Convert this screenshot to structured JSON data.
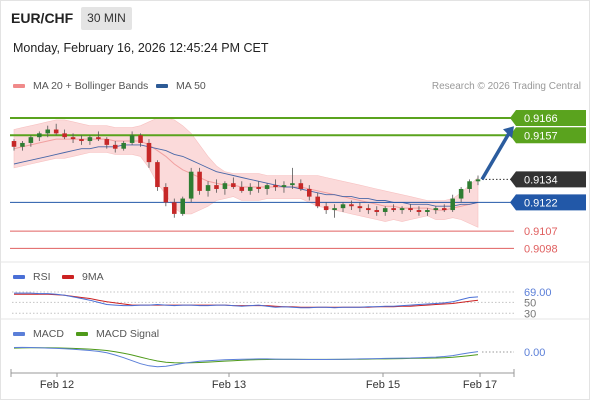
{
  "header": {
    "pair": "EUR/CHF",
    "timeframe": "30 MIN",
    "datetime": "Monday, February 16, 2026 12:45:24 PM CET"
  },
  "legend": {
    "items": [
      {
        "label": "MA 20 + Bollinger Bands",
        "color": "#f08a8a"
      },
      {
        "label": "MA 50",
        "color": "#2d5b96"
      }
    ],
    "credit": "Research © 2026 Trading Central"
  },
  "colors": {
    "bull": "#2e7d32",
    "bear": "#c62828",
    "resistance": "#5aa31e",
    "support": "#e06060",
    "pivot": "#2258a8",
    "current": "#333333",
    "bb_fill": "#fbd4d4",
    "ma20": "#f1a0a0",
    "ma50": "#4a68a8",
    "rsi": "#4a6fd6",
    "rsi_ma": "#cc2222",
    "macd": "#5b7fd8",
    "macd_signal": "#4f9a1a",
    "arrow": "#2b5c9e"
  },
  "chart_data": [
    {
      "type": "candlestick",
      "title": "EUR/CHF",
      "ylim": [
        0.9093,
        0.9178
      ],
      "x_ticks": [
        "Feb 12",
        "Feb 13",
        "Feb 15",
        "Feb 17"
      ],
      "candles_ohlc": [
        [
          0.9154,
          0.9155,
          0.9149,
          0.9151
        ],
        [
          0.9151,
          0.9154,
          0.9149,
          0.9153
        ],
        [
          0.9153,
          0.9157,
          0.9151,
          0.9156
        ],
        [
          0.9156,
          0.9159,
          0.9154,
          0.9158
        ],
        [
          0.9158,
          0.9162,
          0.9156,
          0.916
        ],
        [
          0.916,
          0.9163,
          0.9157,
          0.9158
        ],
        [
          0.9158,
          0.916,
          0.9155,
          0.9156
        ],
        [
          0.9156,
          0.9158,
          0.9153,
          0.9155
        ],
        [
          0.9155,
          0.9157,
          0.9152,
          0.9154
        ],
        [
          0.9154,
          0.9157,
          0.9152,
          0.9156
        ],
        [
          0.9156,
          0.9159,
          0.9154,
          0.9155
        ],
        [
          0.9155,
          0.9156,
          0.915,
          0.9152
        ],
        [
          0.9152,
          0.9154,
          0.9148,
          0.915
        ],
        [
          0.915,
          0.9154,
          0.9149,
          0.9153
        ],
        [
          0.9153,
          0.9159,
          0.9152,
          0.9157
        ],
        [
          0.9157,
          0.9158,
          0.9151,
          0.9153
        ],
        [
          0.9153,
          0.9155,
          0.914,
          0.9143
        ],
        [
          0.9143,
          0.9144,
          0.9128,
          0.913
        ],
        [
          0.913,
          0.9132,
          0.912,
          0.9122
        ],
        [
          0.9122,
          0.9124,
          0.9114,
          0.9116
        ],
        [
          0.9116,
          0.9125,
          0.9115,
          0.9124
        ],
        [
          0.9124,
          0.914,
          0.9122,
          0.9138
        ],
        [
          0.9138,
          0.914,
          0.9126,
          0.9128
        ],
        [
          0.9128,
          0.9133,
          0.9125,
          0.9131
        ],
        [
          0.9131,
          0.9134,
          0.9127,
          0.9129
        ],
        [
          0.9129,
          0.9133,
          0.9126,
          0.9132
        ],
        [
          0.9132,
          0.9135,
          0.9129,
          0.913
        ],
        [
          0.913,
          0.9133,
          0.9127,
          0.9128
        ],
        [
          0.9128,
          0.9132,
          0.9126,
          0.913
        ],
        [
          0.913,
          0.9133,
          0.9127,
          0.9129
        ],
        [
          0.9129,
          0.9132,
          0.9126,
          0.9131
        ],
        [
          0.9131,
          0.9134,
          0.9128,
          0.913
        ],
        [
          0.913,
          0.9133,
          0.9127,
          0.9131
        ],
        [
          0.9131,
          0.914,
          0.9129,
          0.9132
        ],
        [
          0.9132,
          0.9134,
          0.9128,
          0.9129
        ],
        [
          0.9129,
          0.9131,
          0.9123,
          0.9125
        ],
        [
          0.9125,
          0.9127,
          0.9119,
          0.912
        ],
        [
          0.912,
          0.9122,
          0.9116,
          0.9118
        ],
        [
          0.9118,
          0.9121,
          0.9114,
          0.9119
        ],
        [
          0.9119,
          0.9122,
          0.9117,
          0.9121
        ],
        [
          0.9121,
          0.9123,
          0.9118,
          0.912
        ],
        [
          0.912,
          0.9122,
          0.9117,
          0.9119
        ],
        [
          0.9119,
          0.9121,
          0.9116,
          0.9118
        ],
        [
          0.9118,
          0.912,
          0.9115,
          0.9117
        ],
        [
          0.9117,
          0.912,
          0.9115,
          0.9119
        ],
        [
          0.9119,
          0.9121,
          0.9117,
          0.9118
        ],
        [
          0.9118,
          0.912,
          0.9116,
          0.9119
        ],
        [
          0.9119,
          0.9121,
          0.9117,
          0.9118
        ],
        [
          0.9118,
          0.912,
          0.9115,
          0.9117
        ],
        [
          0.9117,
          0.9119,
          0.9115,
          0.9118
        ],
        [
          0.9118,
          0.912,
          0.9116,
          0.9119
        ],
        [
          0.9119,
          0.9121,
          0.9117,
          0.9118
        ],
        [
          0.9118,
          0.9126,
          0.9117,
          0.9124
        ],
        [
          0.9124,
          0.913,
          0.9122,
          0.9129
        ],
        [
          0.9129,
          0.9134,
          0.9127,
          0.9133
        ],
        [
          0.9133,
          0.9136,
          0.9131,
          0.9134
        ]
      ],
      "ma20": [
        0.915,
        0.9151,
        0.9152,
        0.9153,
        0.9154,
        0.9155,
        0.9155,
        0.9155,
        0.9155,
        0.9155,
        0.9155,
        0.9155,
        0.9154,
        0.9154,
        0.9154,
        0.9154,
        0.9152,
        0.9149,
        0.9146,
        0.9142,
        0.9139,
        0.9137,
        0.9135,
        0.9133,
        0.9132,
        0.9131,
        0.9131,
        0.913,
        0.913,
        0.913,
        0.913,
        0.913,
        0.913,
        0.913,
        0.913,
        0.9129,
        0.9128,
        0.9127,
        0.9126,
        0.9125,
        0.9124,
        0.9123,
        0.9122,
        0.9121,
        0.912,
        0.912,
        0.9119,
        0.9119,
        0.9119,
        0.9119,
        0.9118,
        0.9118,
        0.9119,
        0.912,
        0.9121,
        0.9122
      ],
      "bb_upper": [
        0.916,
        0.9161,
        0.9162,
        0.9163,
        0.9164,
        0.9165,
        0.9165,
        0.9164,
        0.9163,
        0.9162,
        0.9162,
        0.9162,
        0.9161,
        0.9161,
        0.9161,
        0.9162,
        0.9164,
        0.9166,
        0.9166,
        0.9165,
        0.9162,
        0.9158,
        0.9152,
        0.9146,
        0.9141,
        0.9138,
        0.9137,
        0.9137,
        0.9137,
        0.9137,
        0.9136,
        0.9136,
        0.9136,
        0.9136,
        0.9136,
        0.9136,
        0.9136,
        0.9135,
        0.9134,
        0.9133,
        0.9132,
        0.9131,
        0.913,
        0.9129,
        0.9128,
        0.9127,
        0.9126,
        0.9125,
        0.9124,
        0.9123,
        0.9123,
        0.9123,
        0.9124,
        0.9127,
        0.9131,
        0.9135
      ],
      "bb_lower": [
        0.914,
        0.9141,
        0.9142,
        0.9143,
        0.9144,
        0.9145,
        0.9145,
        0.9146,
        0.9147,
        0.9148,
        0.9148,
        0.9148,
        0.9147,
        0.9147,
        0.9147,
        0.9146,
        0.914,
        0.9132,
        0.9126,
        0.9119,
        0.9116,
        0.9116,
        0.9118,
        0.912,
        0.9123,
        0.9124,
        0.9125,
        0.9123,
        0.9123,
        0.9123,
        0.9124,
        0.9124,
        0.9124,
        0.9124,
        0.9124,
        0.9122,
        0.912,
        0.9119,
        0.9118,
        0.9117,
        0.9116,
        0.9115,
        0.9114,
        0.9113,
        0.9112,
        0.9113,
        0.9112,
        0.9113,
        0.9114,
        0.9115,
        0.9113,
        0.9113,
        0.9114,
        0.9113,
        0.9111,
        0.9109
      ],
      "ma50": [
        0.9142,
        0.9143,
        0.9144,
        0.9145,
        0.9146,
        0.9147,
        0.9148,
        0.9149,
        0.915,
        0.915,
        0.9151,
        0.9151,
        0.9151,
        0.9152,
        0.9152,
        0.9152,
        0.9151,
        0.915,
        0.9149,
        0.9147,
        0.9146,
        0.9144,
        0.9142,
        0.914,
        0.9138,
        0.9137,
        0.9136,
        0.9135,
        0.9134,
        0.9133,
        0.9132,
        0.9131,
        0.913,
        0.913,
        0.9129,
        0.9128,
        0.9127,
        0.9126,
        0.9126,
        0.9125,
        0.9125,
        0.9124,
        0.9124,
        0.9123,
        0.9123,
        0.9122,
        0.9122,
        0.9121,
        0.9121,
        0.9121,
        0.912,
        0.912,
        0.912,
        0.9121,
        0.9121,
        0.9122
      ],
      "levels": [
        {
          "value": 0.9166,
          "label": "0.9166",
          "kind": "resistance"
        },
        {
          "value": 0.9157,
          "label": "0.9157",
          "kind": "resistance"
        },
        {
          "value": 0.9134,
          "label": "0.9134",
          "kind": "current"
        },
        {
          "value": 0.9122,
          "label": "0.9122",
          "kind": "pivot"
        },
        {
          "value": 0.9107,
          "label": "0.9107",
          "kind": "support"
        },
        {
          "value": 0.9098,
          "label": "0.9098",
          "kind": "support"
        }
      ],
      "forecast_arrow": {
        "from": 0.9134,
        "to": 0.9157
      }
    },
    {
      "type": "line",
      "name": "RSI",
      "ylim": [
        25,
        80
      ],
      "tick_labels": [
        "69.00",
        "50",
        "30"
      ],
      "levels": [
        69,
        50,
        30
      ],
      "series": [
        {
          "name": "RSI",
          "values": [
            67,
            67,
            67,
            66,
            66,
            65,
            63,
            60,
            57,
            54,
            50,
            46,
            45,
            44,
            44,
            45,
            45,
            46,
            45,
            44,
            45,
            45,
            44,
            44,
            45,
            45,
            44,
            43,
            44,
            45,
            43,
            41,
            42,
            41,
            40,
            40,
            41,
            41,
            40,
            41,
            41,
            41,
            42,
            42,
            43,
            43,
            44,
            45,
            46,
            47,
            48,
            49,
            51,
            55,
            59,
            60
          ]
        },
        {
          "name": "9MA",
          "values": [
            65,
            65,
            65,
            65,
            65,
            64,
            63,
            61,
            59,
            57,
            54,
            51,
            49,
            47,
            45,
            45,
            45,
            45,
            45,
            45,
            45,
            45,
            45,
            45,
            45,
            45,
            44,
            44,
            44,
            44,
            44,
            43,
            42,
            42,
            41,
            41,
            41,
            41,
            41,
            41,
            41,
            41,
            41,
            42,
            42,
            42,
            43,
            43,
            44,
            45,
            46,
            47,
            48,
            50,
            52,
            54
          ]
        }
      ]
    },
    {
      "type": "line",
      "name": "MACD",
      "ylim": [
        -1.2,
        0.6
      ],
      "tick_labels": [
        "0.00"
      ],
      "series": [
        {
          "name": "MACD",
          "values": [
            0.3,
            0.31,
            0.3,
            0.28,
            0.26,
            0.24,
            0.22,
            0.18,
            0.14,
            0.1,
            0.04,
            -0.05,
            -0.2,
            -0.38,
            -0.58,
            -0.78,
            -0.92,
            -0.98,
            -0.95,
            -0.86,
            -0.76,
            -0.68,
            -0.62,
            -0.58,
            -0.55,
            -0.52,
            -0.5,
            -0.48,
            -0.47,
            -0.46,
            -0.46,
            -0.47,
            -0.48,
            -0.48,
            -0.49,
            -0.5,
            -0.5,
            -0.5,
            -0.49,
            -0.48,
            -0.47,
            -0.46,
            -0.45,
            -0.44,
            -0.43,
            -0.42,
            -0.41,
            -0.4,
            -0.38,
            -0.36,
            -0.34,
            -0.3,
            -0.24,
            -0.14,
            -0.05,
            0.03
          ]
        },
        {
          "name": "MACD Signal",
          "values": [
            0.26,
            0.27,
            0.28,
            0.28,
            0.28,
            0.27,
            0.26,
            0.24,
            0.22,
            0.19,
            0.15,
            0.1,
            0.02,
            -0.08,
            -0.2,
            -0.34,
            -0.48,
            -0.6,
            -0.68,
            -0.72,
            -0.73,
            -0.72,
            -0.7,
            -0.67,
            -0.64,
            -0.61,
            -0.58,
            -0.55,
            -0.53,
            -0.51,
            -0.5,
            -0.49,
            -0.49,
            -0.49,
            -0.49,
            -0.49,
            -0.49,
            -0.49,
            -0.49,
            -0.49,
            -0.48,
            -0.48,
            -0.47,
            -0.46,
            -0.46,
            -0.45,
            -0.44,
            -0.43,
            -0.42,
            -0.41,
            -0.4,
            -0.38,
            -0.35,
            -0.3,
            -0.24,
            -0.17
          ]
        }
      ]
    }
  ],
  "rsi_legend": [
    {
      "label": "RSI",
      "color": "#4a6fd6"
    },
    {
      "label": "9MA",
      "color": "#cc2222"
    }
  ],
  "macd_legend": [
    {
      "label": "MACD",
      "color": "#5b7fd8"
    },
    {
      "label": "MACD Signal",
      "color": "#4f9a1a"
    }
  ]
}
